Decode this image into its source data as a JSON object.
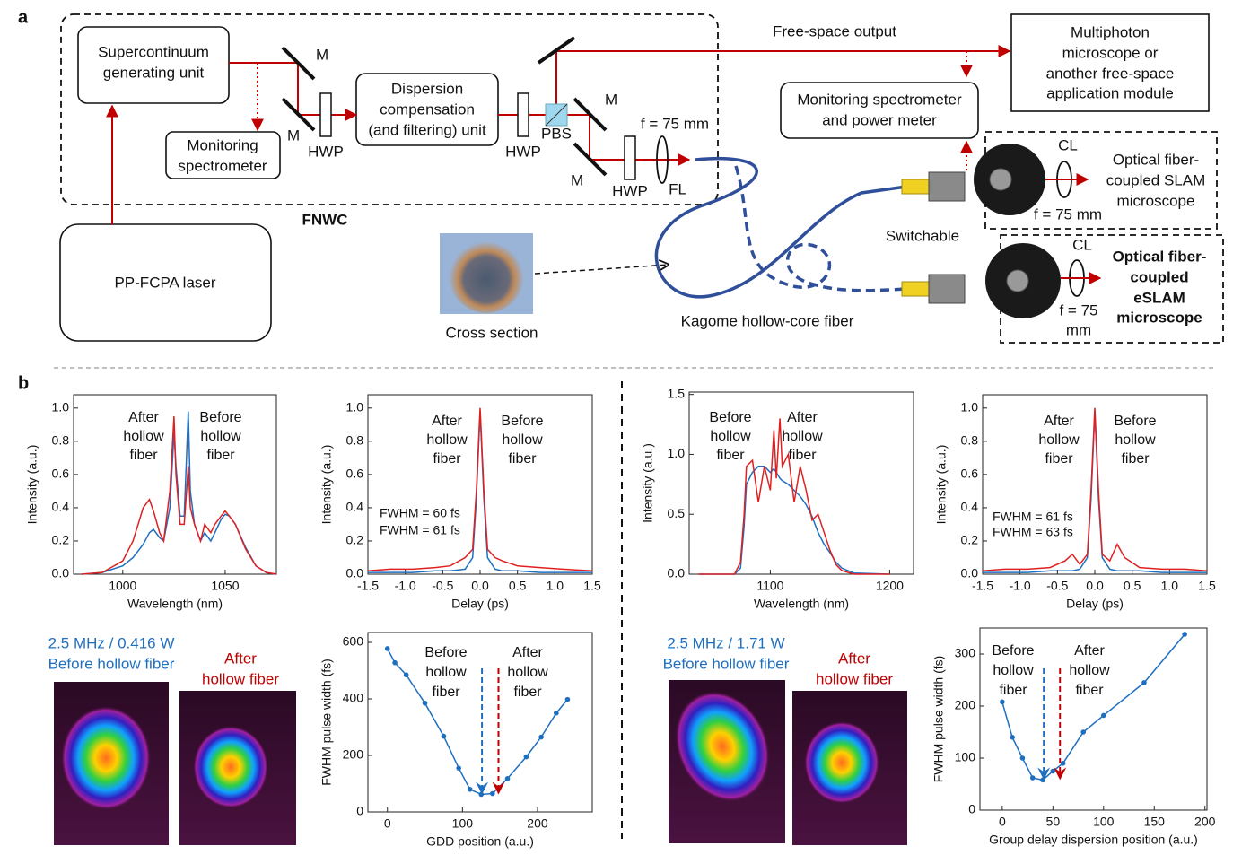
{
  "panel_a": {
    "label": "a",
    "supercontinuum": [
      "Supercontinuum",
      "generating unit"
    ],
    "mirror_labels": [
      "M",
      "M",
      "M",
      "M"
    ],
    "hwp_labels": [
      "HWP",
      "HWP",
      "HWP"
    ],
    "monitoring_spectrometer": [
      "Monitoring",
      "spectrometer"
    ],
    "dispersion_unit": [
      "Dispersion",
      "compensation",
      "(and filtering) unit"
    ],
    "pbs": "PBS",
    "focal_fl": "f = 75 mm",
    "fl": "FL",
    "fnwc": "FNWC",
    "laser": "PP-FCPA laser",
    "free_space_output": "Free-space output",
    "multiphoton": [
      "Multiphoton",
      "microscope or",
      "another free-space",
      "application module"
    ],
    "monitor_power": [
      "Monitoring spectrometer",
      "and power meter"
    ],
    "slam": {
      "cl": "CL",
      "name": [
        "Optical fiber-",
        "coupled SLAM",
        "microscope"
      ],
      "focal": "f = 75 mm"
    },
    "switchable": "Switchable",
    "cross_section": "Cross section",
    "kagome": "Kagome hollow-core fiber",
    "eslam": {
      "cl": "CL",
      "name": [
        "Optical fiber-",
        "coupled",
        "eSLAM",
        "microscope"
      ],
      "focal": [
        "f = 75",
        "mm"
      ]
    }
  },
  "panel_b": {
    "label": "b",
    "beams": [
      {
        "caption": [
          "2.5 MHz / 0.416 W",
          "Before hollow fiber"
        ],
        "after": [
          "After",
          "hollow fiber"
        ]
      },
      {
        "caption": [
          "2.5 MHz / 1.71 W",
          "Before hollow fiber"
        ],
        "after": [
          "After",
          "hollow fiber"
        ]
      }
    ]
  },
  "chart_data": [
    {
      "type": "line",
      "xlabel": "Wavelength (nm)",
      "ylabel": "Intensity (a.u.)",
      "xlim": [
        976,
        1075
      ],
      "ylim": [
        0,
        1.08
      ],
      "xticks": [
        1000,
        1050
      ],
      "yticks": [
        {
          "value": 0,
          "label": "0.0"
        },
        0.2,
        0.4,
        0.6,
        0.8,
        {
          "value": 1,
          "label": "1.0"
        }
      ],
      "x": [
        980,
        990,
        1000,
        1005,
        1010,
        1013,
        1015,
        1018,
        1020,
        1023,
        1025,
        1026,
        1028,
        1030,
        1032,
        1033,
        1035,
        1038,
        1040,
        1043,
        1045,
        1048,
        1050,
        1052,
        1055,
        1060,
        1065,
        1070,
        1075
      ],
      "series": [
        {
          "name": [
            "Before",
            "hollow",
            "fiber"
          ],
          "color": "#1f6fc0",
          "values": [
            0,
            0.01,
            0.05,
            0.1,
            0.18,
            0.25,
            0.27,
            0.22,
            0.2,
            0.4,
            0.85,
            0.65,
            0.35,
            0.35,
            0.98,
            0.5,
            0.3,
            0.2,
            0.25,
            0.2,
            0.25,
            0.33,
            0.36,
            0.35,
            0.3,
            0.16,
            0.05,
            0.01,
            0
          ]
        },
        {
          "name": [
            "After",
            "hollow",
            "fiber"
          ],
          "color": "#e02020",
          "values": [
            0,
            0.01,
            0.08,
            0.2,
            0.4,
            0.45,
            0.38,
            0.25,
            0.2,
            0.5,
            0.95,
            0.6,
            0.3,
            0.3,
            0.65,
            0.4,
            0.3,
            0.2,
            0.3,
            0.25,
            0.3,
            0.35,
            0.38,
            0.35,
            0.3,
            0.15,
            0.05,
            0.01,
            0
          ]
        }
      ]
    },
    {
      "type": "line",
      "xlabel": "Delay (ps)",
      "ylabel": "Intensity (a.u.)",
      "xlim": [
        -1.5,
        1.5
      ],
      "ylim": [
        0,
        1.08
      ],
      "xticks": [
        -1.5,
        {
          "value": -1,
          "label": "-1.0"
        },
        -0.5,
        {
          "value": 0,
          "label": "0.0"
        },
        0.5,
        {
          "value": 1,
          "label": "1.0"
        },
        1.5
      ],
      "yticks": [
        {
          "value": 0,
          "label": "0.0"
        },
        0.2,
        0.4,
        0.6,
        0.8,
        {
          "value": 1,
          "label": "1.0"
        }
      ],
      "x": [
        -1.5,
        -1.2,
        -0.9,
        -0.6,
        -0.4,
        -0.2,
        -0.1,
        -0.05,
        0,
        0.05,
        0.1,
        0.2,
        0.3,
        0.5,
        0.8,
        1.1,
        1.5
      ],
      "series": [
        {
          "name": [
            "Before",
            "hollow",
            "fiber"
          ],
          "color": "#1f6fc0",
          "note": "FWHM = 60 fs",
          "values": [
            0.01,
            0.01,
            0.01,
            0.02,
            0.02,
            0.03,
            0.1,
            0.45,
            0.98,
            0.45,
            0.1,
            0.03,
            0.02,
            0.02,
            0.01,
            0.01,
            0.01
          ]
        },
        {
          "name": [
            "After",
            "hollow",
            "fiber"
          ],
          "color": "#e02020",
          "note": "FWHM = 61 fs",
          "values": [
            0.02,
            0.03,
            0.03,
            0.04,
            0.05,
            0.1,
            0.15,
            0.5,
            1.0,
            0.5,
            0.15,
            0.1,
            0.08,
            0.05,
            0.04,
            0.03,
            0.02
          ]
        }
      ]
    },
    {
      "type": "line",
      "xlabel": "Wavelength (nm)",
      "ylabel": "Intensity (a.u.)",
      "xlim": [
        1032,
        1220
      ],
      "ylim": [
        0,
        1.52
      ],
      "xticks": [
        1100,
        1200
      ],
      "yticks": [
        {
          "value": 0,
          "label": "0.0"
        },
        0.5,
        {
          "value": 1,
          "label": "1.0"
        },
        1.5
      ],
      "x": [
        1040,
        1070,
        1075,
        1078,
        1080,
        1085,
        1090,
        1095,
        1100,
        1103,
        1105,
        1108,
        1110,
        1115,
        1120,
        1125,
        1130,
        1135,
        1140,
        1145,
        1150,
        1155,
        1160,
        1170,
        1200
      ],
      "series": [
        {
          "name": [
            "Before",
            "hollow",
            "fiber"
          ],
          "color": "#1f6fc0",
          "values": [
            0,
            0,
            0.05,
            0.4,
            0.75,
            0.85,
            0.9,
            0.9,
            0.85,
            0.88,
            0.85,
            0.8,
            0.78,
            0.75,
            0.7,
            0.65,
            0.58,
            0.48,
            0.35,
            0.25,
            0.18,
            0.1,
            0.05,
            0.01,
            0
          ]
        },
        {
          "name": [
            "After",
            "hollow",
            "fiber"
          ],
          "color": "#e02020",
          "values": [
            0,
            0,
            0.1,
            0.5,
            0.9,
            0.95,
            0.6,
            0.9,
            0.7,
            1.2,
            0.8,
            1.3,
            0.9,
            1.0,
            0.6,
            0.9,
            0.7,
            0.45,
            0.5,
            0.35,
            0.2,
            0.08,
            0.03,
            0,
            0
          ]
        }
      ]
    },
    {
      "type": "line",
      "xlabel": "Delay (ps)",
      "ylabel": "Intensity (a.u.)",
      "xlim": [
        -1.5,
        1.5
      ],
      "ylim": [
        0,
        1.08
      ],
      "xticks": [
        -1.5,
        {
          "value": -1,
          "label": "-1.0"
        },
        -0.5,
        {
          "value": 0,
          "label": "0.0"
        },
        0.5,
        {
          "value": 1,
          "label": "1.0"
        },
        1.5
      ],
      "yticks": [
        {
          "value": 0,
          "label": "0.0"
        },
        0.2,
        0.4,
        0.6,
        0.8,
        {
          "value": 1,
          "label": "1.0"
        }
      ],
      "x": [
        -1.5,
        -1.2,
        -0.9,
        -0.6,
        -0.4,
        -0.3,
        -0.2,
        -0.1,
        -0.05,
        0,
        0.05,
        0.1,
        0.2,
        0.3,
        0.4,
        0.6,
        0.9,
        1.2,
        1.5
      ],
      "series": [
        {
          "name": [
            "Before",
            "hollow",
            "fiber"
          ],
          "color": "#1f6fc0",
          "note": "FWHM = 61 fs",
          "values": [
            0.01,
            0.01,
            0.01,
            0.02,
            0.02,
            0.02,
            0.03,
            0.1,
            0.45,
            0.98,
            0.45,
            0.1,
            0.03,
            0.02,
            0.02,
            0.02,
            0.01,
            0.01,
            0.01
          ]
        },
        {
          "name": [
            "After",
            "hollow",
            "fiber"
          ],
          "color": "#e02020",
          "note": "FWHM = 63 fs",
          "values": [
            0.02,
            0.03,
            0.03,
            0.04,
            0.08,
            0.12,
            0.06,
            0.12,
            0.5,
            1.0,
            0.5,
            0.12,
            0.08,
            0.18,
            0.1,
            0.04,
            0.03,
            0.03,
            0.02
          ]
        }
      ]
    },
    {
      "type": "line",
      "markers": true,
      "xlabel": "GDD position (a.u.)",
      "ylabel": "FWHM pulse width (fs)",
      "xlim": [
        -26,
        273
      ],
      "ylim": [
        0,
        635
      ],
      "xticks": [
        0,
        100,
        200
      ],
      "yticks": [
        0,
        200,
        400,
        600
      ],
      "x": [
        0,
        10,
        25,
        50,
        75,
        95,
        110,
        125,
        140,
        160,
        185,
        205,
        225,
        240
      ],
      "series": [
        {
          "color": "#1f6fc0",
          "values": [
            578,
            528,
            485,
            385,
            268,
            155,
            80,
            62,
            65,
            118,
            195,
            265,
            350,
            398
          ]
        }
      ],
      "annotations": [
        {
          "lines": [
            "Before",
            "hollow",
            "fiber"
          ],
          "color": "#1f6fc0",
          "x": 126
        },
        {
          "lines": [
            "After",
            "hollow",
            "fiber"
          ],
          "color": "#c00000",
          "x": 148
        }
      ]
    },
    {
      "type": "line",
      "markers": true,
      "xlabel": "Group delay dispersion position (a.u.)",
      "ylabel": "FWHM pulse width (fs)",
      "xlim": [
        -22,
        202
      ],
      "ylim": [
        0,
        350
      ],
      "xticks": [
        0,
        50,
        100,
        150,
        200
      ],
      "yticks": [
        0,
        100,
        200,
        300
      ],
      "x": [
        0,
        10,
        20,
        30,
        40,
        50,
        60,
        80,
        100,
        140,
        180
      ],
      "series": [
        {
          "color": "#1f6fc0",
          "values": [
            208,
            140,
            100,
            62,
            58,
            75,
            90,
            150,
            182,
            245,
            338
          ]
        }
      ],
      "annotations": [
        {
          "lines": [
            "Before",
            "hollow",
            "fiber"
          ],
          "color": "#1f6fc0",
          "x": 41
        },
        {
          "lines": [
            "After",
            "hollow",
            "fiber"
          ],
          "color": "#c00000",
          "x": 57
        }
      ]
    }
  ]
}
